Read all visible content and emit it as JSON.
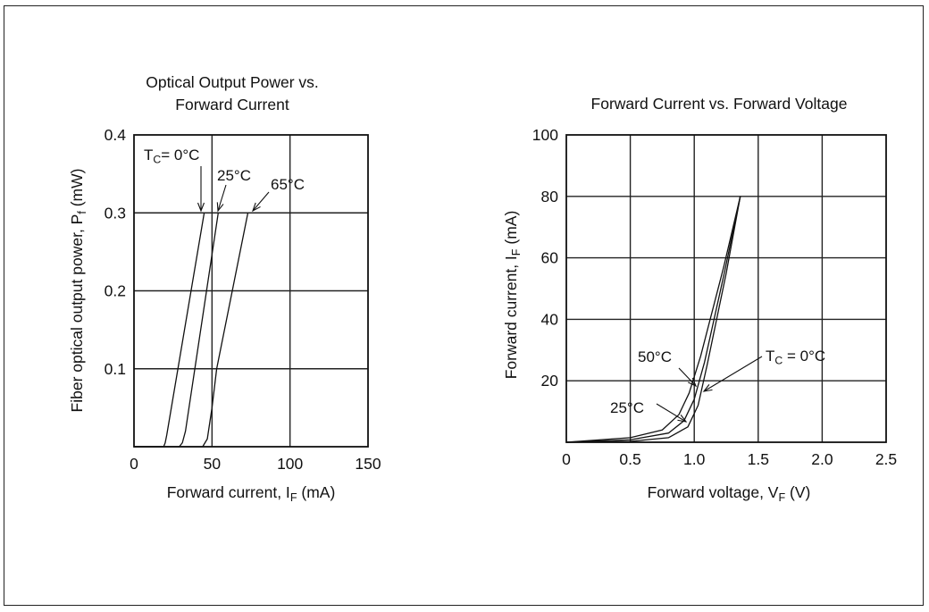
{
  "chart_data": [
    {
      "type": "line",
      "title_line1": "Optical Output Power vs.",
      "title_line2": "Forward Current",
      "ylabel_main": "Fiber optical output power, P",
      "ylabel_sub": "f",
      "ylabel_unit": " (mW)",
      "xlabel_main": "Forward current, I",
      "xlabel_sub": "F",
      "xlabel_unit": " (mA)",
      "xlim": [
        0,
        150
      ],
      "ylim": [
        0,
        0.4
      ],
      "x_ticks": [
        0,
        50,
        100,
        150
      ],
      "x_tick_labels": [
        "0",
        "50",
        "100",
        "150"
      ],
      "y_ticks": [
        0.1,
        0.2,
        0.3,
        0.4
      ],
      "y_tick_labels": [
        "0.1",
        "0.2",
        "0.3",
        "0.4"
      ],
      "grid": true,
      "series": [
        {
          "name": "T_C = 0°C",
          "points": [
            [
              0,
              0.0
            ],
            [
              19,
              0.0
            ],
            [
              20,
              0.005
            ],
            [
              21,
              0.015
            ],
            [
              45,
              0.3
            ]
          ]
        },
        {
          "name": "25°C",
          "points": [
            [
              0,
              0.0
            ],
            [
              29,
              0.0
            ],
            [
              31,
              0.005
            ],
            [
              33,
              0.02
            ],
            [
              54,
              0.3
            ]
          ]
        },
        {
          "name": "65°C",
          "points": [
            [
              0,
              0.0
            ],
            [
              44,
              0.0
            ],
            [
              47,
              0.01
            ],
            [
              50,
              0.05
            ],
            [
              53,
              0.1
            ],
            [
              73,
              0.3
            ]
          ]
        }
      ],
      "annotations": {
        "t0_prefix": "T",
        "t0_sub": "C",
        "t0_suffix": "= 0°C",
        "t25": "25°C",
        "t65": "65°C"
      }
    },
    {
      "type": "line",
      "title": "Forward Current vs. Forward Voltage",
      "ylabel_main": "Forward current, I",
      "ylabel_sub": "F",
      "ylabel_unit": " (mA)",
      "xlabel_main": "Forward voltage, V",
      "xlabel_sub": "F",
      "xlabel_unit": " (V)",
      "xlim": [
        0,
        2.5
      ],
      "ylim": [
        0,
        100
      ],
      "x_ticks": [
        0,
        0.5,
        1.0,
        1.5,
        2.0,
        2.5
      ],
      "x_tick_labels": [
        "0",
        "0.5",
        "1.0",
        "1.5",
        "2.0",
        "2.5"
      ],
      "y_ticks": [
        20,
        40,
        60,
        80,
        100
      ],
      "y_tick_labels": [
        "20",
        "40",
        "60",
        "80",
        "100"
      ],
      "grid": true,
      "series": [
        {
          "name": "T_C = 0°C",
          "points": [
            [
              0,
              0
            ],
            [
              0.5,
              0.3
            ],
            [
              0.8,
              1.5
            ],
            [
              0.95,
              5
            ],
            [
              1.03,
              12
            ],
            [
              1.1,
              25
            ],
            [
              1.25,
              55
            ],
            [
              1.36,
              80
            ]
          ]
        },
        {
          "name": "25°C",
          "points": [
            [
              0,
              0
            ],
            [
              0.5,
              0.8
            ],
            [
              0.8,
              3
            ],
            [
              0.92,
              7
            ],
            [
              1.0,
              14
            ],
            [
              1.08,
              26
            ],
            [
              1.24,
              56
            ],
            [
              1.36,
              80
            ]
          ]
        },
        {
          "name": "50°C",
          "points": [
            [
              0,
              0
            ],
            [
              0.5,
              1.5
            ],
            [
              0.75,
              4
            ],
            [
              0.88,
              9
            ],
            [
              0.96,
              16
            ],
            [
              1.05,
              28
            ],
            [
              1.23,
              57
            ],
            [
              1.36,
              80
            ]
          ]
        }
      ],
      "annotations": {
        "t50": "50°C",
        "t25": "25°C",
        "t0_prefix": "T",
        "t0_sub": "C",
        "t0_suffix": " = 0°C"
      }
    }
  ]
}
